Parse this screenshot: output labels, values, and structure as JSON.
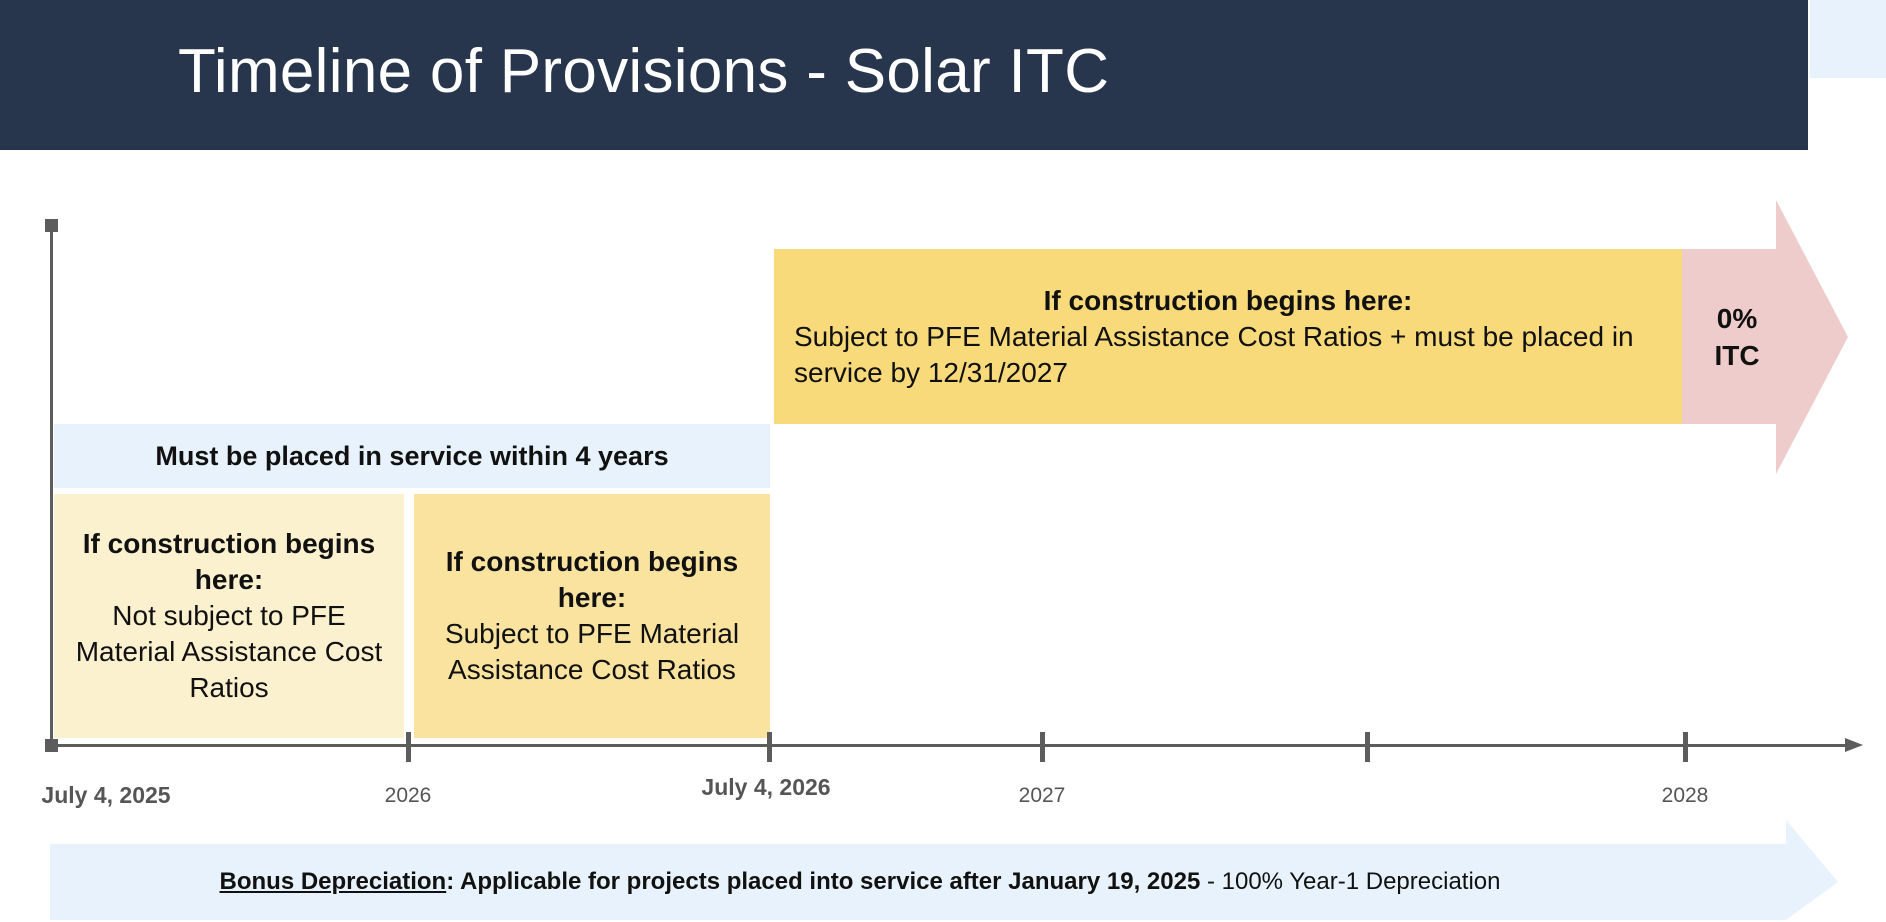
{
  "title": "Timeline of Provisions - Solar ITC",
  "timeline": {
    "ticks": [
      {
        "label": "July 4, 2025",
        "bold": true
      },
      {
        "label": "2026",
        "bold": false
      },
      {
        "label": "July 4, 2026",
        "bold": true
      },
      {
        "label": "2027",
        "bold": false
      },
      {
        "label": "",
        "bold": false
      },
      {
        "label": "2028",
        "bold": false
      }
    ]
  },
  "service_band": {
    "label": "Must be placed in service within 4 years"
  },
  "boxes": [
    {
      "heading": "If construction begins here:",
      "body": "Not subject to PFE Material Assistance Cost Ratios"
    },
    {
      "heading": "If construction begins here:",
      "body": "Subject to PFE Material Assistance Cost Ratios"
    },
    {
      "heading": "If construction begins here:",
      "body": "Subject to PFE Material Assistance Cost Ratios + must be placed in service by 12/31/2027"
    }
  ],
  "itc_zero": {
    "line1": "0%",
    "line2": "ITC"
  },
  "bonus": {
    "lead": "Bonus Depreciation",
    "middle": ": Applicable for projects placed into service after January 19, 2025",
    "tail": " - 100% Year-1 Depreciation"
  },
  "colors": {
    "header": "#28364d",
    "light_blue": "#e8f2fc",
    "pale_yellow": "#fcf1cf",
    "mid_yellow": "#f9e39f",
    "yellow": "#f8da7a",
    "pink": "#efcccc",
    "axis": "#5c5c5c"
  }
}
